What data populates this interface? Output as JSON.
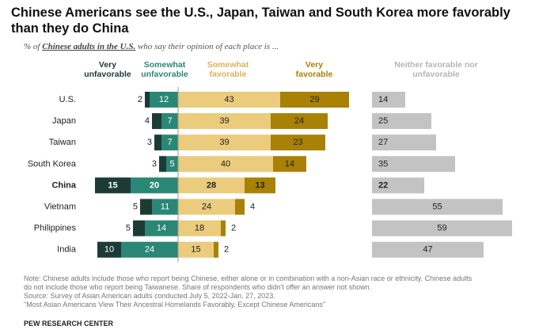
{
  "title": "Chinese Americans see the U.S., Japan, Taiwan and South Korea more favorably than they do China",
  "subtitle": {
    "prefix": "% of ",
    "emphasis": "Chinese adults in the U.S.",
    "suffix": " who say their opinion of each place is ..."
  },
  "headers": {
    "very_unfavorable": "Very unfavorable",
    "somewhat_unfavorable": "Somewhat unfavorable",
    "somewhat_favorable": "Somewhat favorable",
    "very_favorable": "Very favorable",
    "neither": "Neither favorable nor unfavorable"
  },
  "chart_data": {
    "type": "bar",
    "orientation": "horizontal-diverging",
    "categories": [
      "U.S.",
      "Japan",
      "Taiwan",
      "South Korea",
      "China",
      "Vietnam",
      "Philippines",
      "India"
    ],
    "highlight_category": "China",
    "series": [
      {
        "name": "Very unfavorable",
        "values": [
          2,
          4,
          3,
          3,
          15,
          5,
          5,
          10
        ]
      },
      {
        "name": "Somewhat unfavorable",
        "values": [
          12,
          7,
          7,
          5,
          20,
          11,
          14,
          24
        ]
      },
      {
        "name": "Somewhat favorable",
        "values": [
          43,
          39,
          39,
          40,
          28,
          24,
          18,
          15
        ]
      },
      {
        "name": "Very favorable",
        "values": [
          29,
          24,
          23,
          14,
          13,
          4,
          2,
          2
        ]
      },
      {
        "name": "Neither favorable nor unfavorable",
        "values": [
          14,
          25,
          27,
          35,
          22,
          55,
          59,
          47
        ]
      }
    ],
    "colors": {
      "very_unfavorable": "#1d3b35",
      "somewhat_unfavorable": "#2a8775",
      "somewhat_favorable": "#ebcb7c",
      "very_favorable": "#a88106",
      "neither": "#c3c3c3",
      "divider": "#9a9a9a"
    }
  },
  "notes": [
    "Note: Chinese adults include those who report being Chinese, either alone or in combination with a non-Asian race or ethnicity. Chinese adults",
    "do not include those who report being Taiwanese. Share of respondents who didn't offer an answer not shown.",
    "Source: Survey of Asian American adults conducted July 5, 2022-Jan. 27, 2023.",
    "\"Most Asian Americans View Their Ancestral Homelands Favorably, Except Chinese Americans\""
  ],
  "credit": "PEW RESEARCH CENTER"
}
